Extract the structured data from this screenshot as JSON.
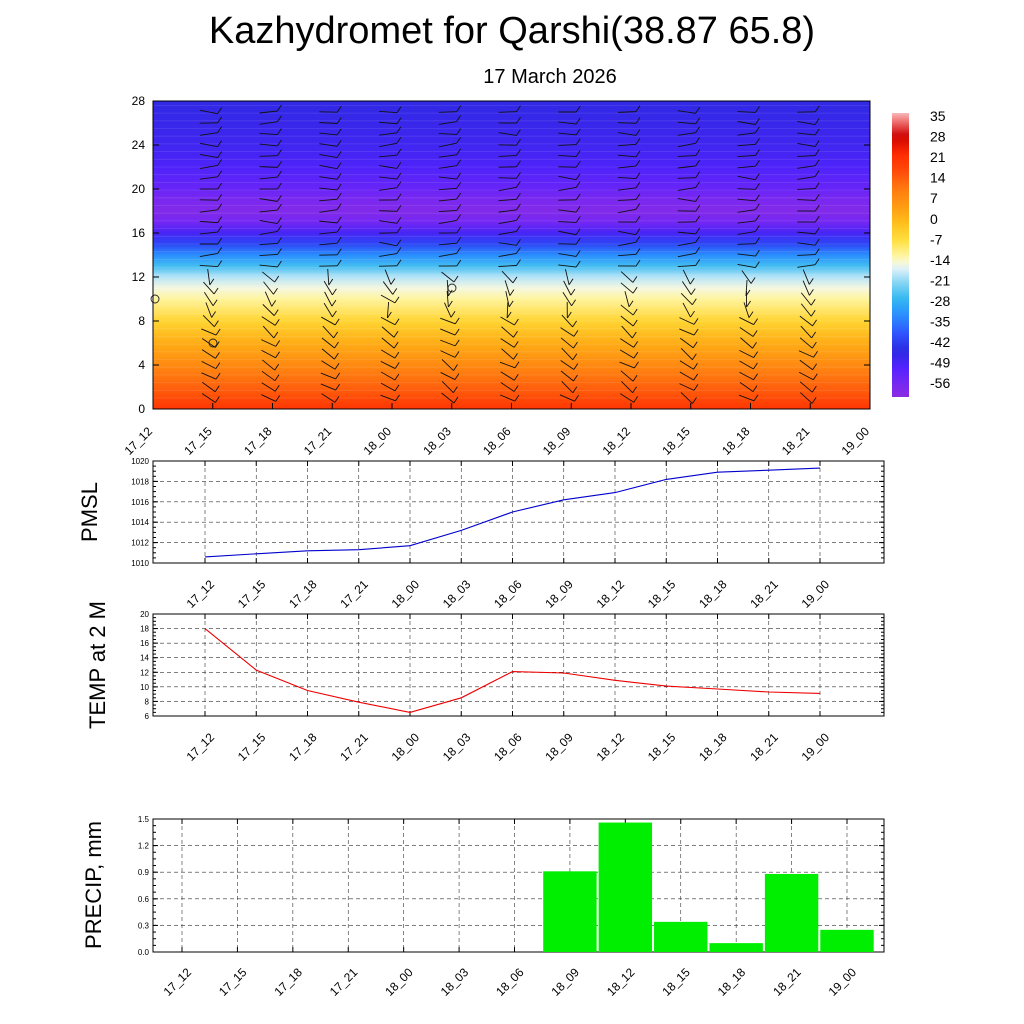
{
  "header": {
    "title": "Kazhydromet for Qarshi(38.87 65.8)",
    "date": "17 March 2026"
  },
  "chart_data": [
    {
      "type": "heatmap",
      "name": "temperature-cross-section",
      "x_ticks": [
        "17_12",
        "17_15",
        "17_18",
        "17_21",
        "18_00",
        "18_03",
        "18_06",
        "18_09",
        "18_12",
        "18_15",
        "18_18",
        "18_21",
        "19_00"
      ],
      "y_ticks": [
        0,
        4,
        8,
        12,
        16,
        20,
        24,
        28
      ],
      "ylim": [
        0,
        28
      ],
      "colorbar_labels": [
        "35",
        "28",
        "21",
        "14",
        "7",
        "0",
        "-7",
        "-14",
        "-21",
        "-28",
        "-35",
        "-42",
        "-49",
        "-56"
      ],
      "colorbar_range": [
        -60,
        38
      ],
      "profile_levels": [
        0,
        2,
        4,
        6,
        8,
        10,
        11,
        12,
        13,
        14,
        15,
        16,
        17,
        18,
        19,
        20,
        22,
        24,
        26,
        28
      ],
      "profile_temps": [
        22,
        15,
        9,
        3,
        -4,
        -11,
        -14,
        -18,
        -25,
        -32,
        -40,
        -48,
        -55,
        -58,
        -56,
        -53,
        -49,
        -47,
        -46,
        -45
      ]
    },
    {
      "type": "line",
      "name": "pmsl",
      "ylabel": "PMSL",
      "categories": [
        "17_12",
        "17_15",
        "17_18",
        "17_21",
        "18_00",
        "18_03",
        "18_06",
        "18_09",
        "18_12",
        "18_15",
        "18_18",
        "18_21",
        "19_00"
      ],
      "values": [
        1010.6,
        1010.9,
        1011.2,
        1011.3,
        1011.7,
        1013.2,
        1015.0,
        1016.2,
        1016.9,
        1018.2,
        1018.9,
        1019.1,
        1019.3
      ],
      "ylim": [
        1010,
        1020
      ],
      "y_ticks": [
        1010,
        1012,
        1014,
        1016,
        1018,
        1020
      ],
      "color": "#0000cc"
    },
    {
      "type": "line",
      "name": "temp2m",
      "ylabel": "TEMP at 2 M",
      "categories": [
        "17_12",
        "17_15",
        "17_18",
        "17_21",
        "18_00",
        "18_03",
        "18_06",
        "18_09",
        "18_12",
        "18_15",
        "18_18",
        "18_21",
        "19_00"
      ],
      "values": [
        18.0,
        12.3,
        9.5,
        7.9,
        6.5,
        8.5,
        12.1,
        11.9,
        10.9,
        10.1,
        9.7,
        9.3,
        9.1
      ],
      "ylim": [
        6,
        20
      ],
      "y_ticks": [
        6,
        8,
        10,
        12,
        14,
        16,
        18,
        20
      ],
      "color": "#ee0000"
    },
    {
      "type": "bar",
      "name": "precip",
      "ylabel": "PRECIP, mm",
      "categories": [
        "17_12",
        "17_15",
        "17_18",
        "17_21",
        "18_00",
        "18_03",
        "18_06",
        "18_09",
        "18_12",
        "18_15",
        "18_18",
        "18_21",
        "19_00"
      ],
      "values": [
        0,
        0,
        0,
        0,
        0,
        0,
        0,
        0.91,
        1.46,
        0.34,
        0.1,
        0.88,
        0.25
      ],
      "ylim": [
        0,
        1.5
      ],
      "y_ticks": [
        "0.0",
        "0.3",
        "0.6",
        "0.9",
        "1.2",
        "1.5"
      ],
      "color": "#00ee00"
    }
  ]
}
